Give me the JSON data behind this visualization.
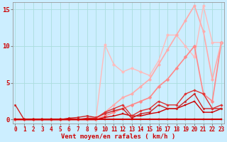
{
  "background_color": "#cceeff",
  "grid_color": "#aadddd",
  "xlabel": "Vent moyen/en rafales ( km/h )",
  "xlabel_color": "#cc0000",
  "xlabel_fontsize": 6.5,
  "tick_color": "#cc0000",
  "tick_fontsize": 5.5,
  "ytick_values": [
    0,
    5,
    10,
    15
  ],
  "xtick_values": [
    0,
    1,
    2,
    3,
    4,
    5,
    6,
    7,
    8,
    9,
    10,
    11,
    12,
    13,
    14,
    15,
    16,
    17,
    18,
    19,
    20,
    21,
    22,
    23
  ],
  "xlim": [
    -0.3,
    23.3
  ],
  "ylim": [
    -0.5,
    16
  ],
  "series": [
    {
      "x": [
        0,
        1,
        2,
        3,
        4,
        5,
        6,
        7,
        8,
        9,
        10,
        11,
        12,
        13,
        14,
        15,
        16,
        17,
        18,
        19,
        20,
        21,
        22,
        23
      ],
      "y": [
        0,
        0,
        0,
        0,
        0,
        0,
        0,
        0,
        0,
        0,
        0,
        0,
        0,
        0,
        0,
        0,
        0,
        0,
        0,
        0,
        0,
        0,
        0,
        0
      ],
      "color": "#cc0000",
      "linewidth": 1.5,
      "marker": "s",
      "markersize": 1.8,
      "zorder": 5
    },
    {
      "x": [
        0,
        1,
        2,
        3,
        4,
        5,
        6,
        7,
        8,
        9,
        10,
        11,
        12,
        13,
        14,
        15,
        16,
        17,
        18,
        19,
        20,
        21,
        22,
        23
      ],
      "y": [
        0,
        0,
        0,
        0,
        0,
        0,
        0,
        0,
        0,
        0,
        0.3,
        0.5,
        0.8,
        0.5,
        0.5,
        0.8,
        1.0,
        1.5,
        1.5,
        2.0,
        2.5,
        1.0,
        1.0,
        1.5
      ],
      "color": "#cc0000",
      "linewidth": 1.0,
      "marker": "s",
      "markersize": 1.8,
      "zorder": 4
    },
    {
      "x": [
        0,
        1,
        2,
        3,
        4,
        5,
        6,
        7,
        8,
        9,
        10,
        11,
        12,
        13,
        14,
        15,
        16,
        17,
        18,
        19,
        20,
        21,
        22,
        23
      ],
      "y": [
        2,
        0,
        0,
        0,
        0,
        0,
        0.2,
        0.3,
        0.5,
        0.3,
        0.8,
        1.2,
        1.5,
        0.2,
        0.8,
        1.0,
        2.0,
        1.5,
        1.5,
        2.5,
        3.5,
        1.5,
        1.5,
        1.5
      ],
      "color": "#cc2222",
      "linewidth": 1.0,
      "marker": "o",
      "markersize": 1.8,
      "zorder": 4
    },
    {
      "x": [
        0,
        1,
        2,
        3,
        4,
        5,
        6,
        7,
        8,
        9,
        10,
        11,
        12,
        13,
        14,
        15,
        16,
        17,
        18,
        19,
        20,
        21,
        22,
        23
      ],
      "y": [
        0,
        0,
        0,
        0,
        0,
        0,
        0,
        0,
        0.2,
        0.2,
        1.0,
        1.5,
        2.0,
        0.5,
        1.2,
        1.5,
        2.5,
        2.0,
        2.0,
        3.5,
        4.0,
        3.5,
        1.5,
        2.0
      ],
      "color": "#dd3333",
      "linewidth": 1.0,
      "marker": "D",
      "markersize": 1.8,
      "zorder": 4
    },
    {
      "x": [
        0,
        1,
        2,
        3,
        4,
        5,
        6,
        7,
        8,
        9,
        10,
        11,
        12,
        13,
        14,
        15,
        16,
        17,
        18,
        19,
        20,
        21,
        22,
        23
      ],
      "y": [
        0,
        0,
        0,
        0,
        0,
        0,
        0,
        0,
        0,
        0,
        0.5,
        1.0,
        1.5,
        2.0,
        2.5,
        3.0,
        4.5,
        5.5,
        7.0,
        8.5,
        10.0,
        3.5,
        2.5,
        10.5
      ],
      "color": "#ff8888",
      "linewidth": 1.2,
      "marker": "D",
      "markersize": 2.5,
      "zorder": 3
    },
    {
      "x": [
        0,
        1,
        2,
        3,
        4,
        5,
        6,
        7,
        8,
        9,
        10,
        11,
        12,
        13,
        14,
        15,
        16,
        17,
        18,
        19,
        20,
        21,
        22,
        23
      ],
      "y": [
        0,
        0,
        0,
        0,
        0,
        0,
        0,
        0,
        0,
        0,
        1.0,
        2.0,
        3.0,
        3.5,
        4.5,
        5.5,
        7.5,
        9.5,
        11.5,
        13.5,
        15.5,
        12.0,
        5.5,
        10.5
      ],
      "color": "#ffaaaa",
      "linewidth": 1.2,
      "marker": "o",
      "markersize": 2.5,
      "zorder": 3
    },
    {
      "x": [
        0,
        1,
        2,
        3,
        4,
        5,
        6,
        7,
        8,
        9,
        10,
        11,
        12,
        13,
        14,
        15,
        16,
        17,
        18,
        19,
        20,
        21,
        22,
        23
      ],
      "y": [
        0,
        0,
        0,
        0,
        0,
        0,
        0,
        0,
        0,
        0,
        10.2,
        7.5,
        6.5,
        7.0,
        6.5,
        6.0,
        8.0,
        11.5,
        11.5,
        10.0,
        8.5,
        15.5,
        10.5,
        10.5
      ],
      "color": "#ffbbbb",
      "linewidth": 1.0,
      "marker": "o",
      "markersize": 2.5,
      "zorder": 2
    }
  ]
}
